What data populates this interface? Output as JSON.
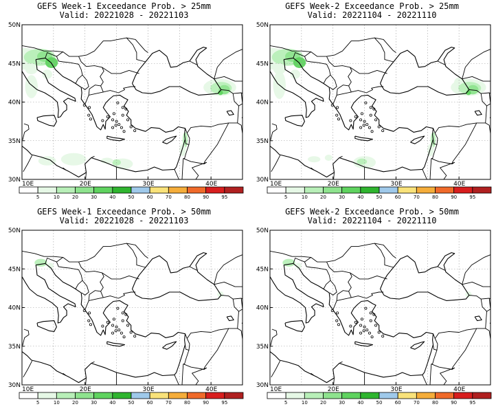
{
  "legend": {
    "levels": [
      "5",
      "10",
      "20",
      "30",
      "40",
      "50",
      "60",
      "70",
      "80",
      "90",
      "95"
    ],
    "colors": [
      "#ffffff",
      "#e6f8e6",
      "#b8efb8",
      "#8ee38e",
      "#5fd35f",
      "#2fb52f",
      "#9fc9ea",
      "#f9e27a",
      "#f5ad3a",
      "#f06a2a",
      "#d81e1e",
      "#b02020"
    ]
  },
  "axes": {
    "lon_labels": [
      "10E",
      "20E",
      "30E",
      "40E"
    ],
    "lat_labels": [
      "50N",
      "45N",
      "40N",
      "35N",
      "30N"
    ]
  },
  "panels": [
    {
      "title": "GEFS Week-1 Exceedance Prob. > 25mm",
      "valid": "Valid: 20221028 - 20221103",
      "variant": "week1_25"
    },
    {
      "title": "GEFS Week-2 Exceedance Prob. > 25mm",
      "valid": "Valid: 20221104 - 20221110",
      "variant": "week2_25"
    },
    {
      "title": "GEFS Week-1 Exceedance Prob. > 50mm",
      "valid": "Valid: 20221028 - 20221103",
      "variant": "week1_50"
    },
    {
      "title": "GEFS Week-2 Exceedance Prob. > 50mm",
      "valid": "Valid: 20221104 - 20221110",
      "variant": "week2_50"
    }
  ]
}
